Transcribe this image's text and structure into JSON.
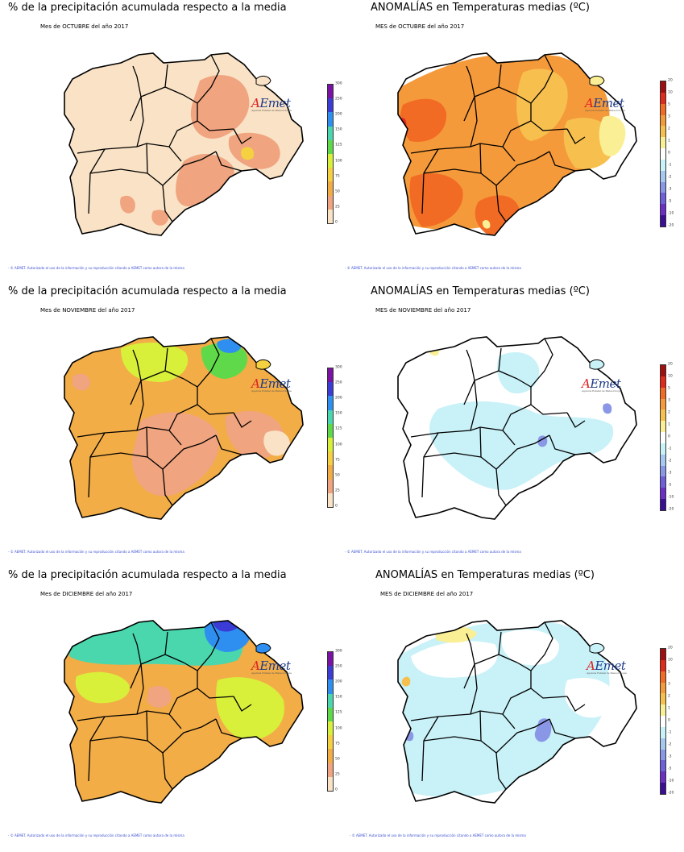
{
  "logo": {
    "text": "AEmet",
    "tagline": "Agencia Estatal de Meteorología"
  },
  "footer_text": "- © AEMET. Autorizado el uso de la información y su reproducción citando a AEMET como autora de la misma",
  "legends": {
    "precip": {
      "ticks": [
        "300",
        "250",
        "200",
        "150",
        "125",
        "100",
        "75",
        "50",
        "25",
        "0"
      ],
      "colors": [
        "#7a12a5",
        "#3b3bd6",
        "#2e8ff0",
        "#4ad7ad",
        "#5fd94a",
        "#d8f03a",
        "#f5d142",
        "#f2ad47",
        "#f0a47f",
        "#f9e2c5"
      ]
    },
    "temp": {
      "ticks": [
        "20",
        "10",
        "5",
        "3",
        "2",
        "1",
        "0",
        "-1",
        "-2",
        "-3",
        "-5",
        "-10",
        "-20"
      ],
      "colors": [
        "#9e0f0f",
        "#e02a1c",
        "#f26b25",
        "#f59a3a",
        "#f7c04e",
        "#fbef96",
        "#ffffff",
        "#c8f1f8",
        "#a6c7f0",
        "#8a97e6",
        "#6e60d8",
        "#6b2fc6",
        "#3a0f93"
      ]
    }
  },
  "panels": [
    {
      "title": "% de la precipitación acumulada respecto a la media",
      "subtitle": "Mes de OCTUBRE del año 2017",
      "type": "precip"
    },
    {
      "title": "ANOMALÍAS en Temperaturas medias (ºC)",
      "subtitle": "MES de OCTUBRE del año 2017",
      "type": "temp"
    },
    {
      "title": "% de la precipitación acumulada respecto a la media",
      "subtitle": "Mes de NOVIEMBRE del año 2017",
      "type": "precip"
    },
    {
      "title": "ANOMALÍAS en Temperaturas medias (ºC)",
      "subtitle": "MES de NOVIEMBRE del año 2017",
      "type": "temp"
    },
    {
      "title": "% de la precipitación acumulada respecto a la media",
      "subtitle": "Mes de DICIEMBRE del año 2017",
      "type": "precip"
    },
    {
      "title": "ANOMALÍAS en Temperaturas medias (ºC)",
      "subtitle": "MES de DICIEMBRE del año 2017",
      "type": "temp"
    }
  ]
}
